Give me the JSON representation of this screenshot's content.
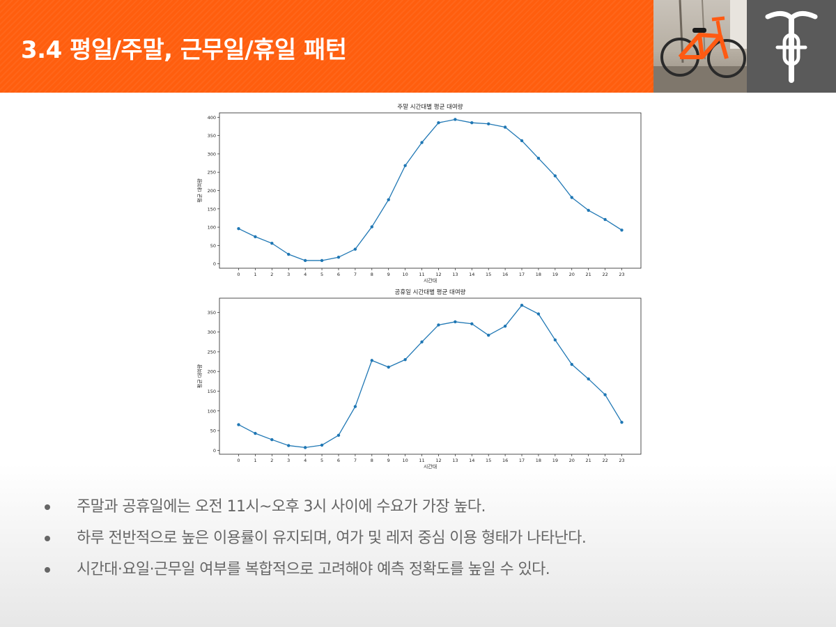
{
  "slide": {
    "title": "3.4 평일/주말, 근무일/휴일 패턴",
    "bullets": [
      "주말과 공휴일에는 오전 11시~오후 3시 사이에 수요가 가장 높다.",
      "하루 전반적으로 높은 이용률이 유지되며, 여가 및 레저 중심 이용 형태가 나타난다.",
      "시간대·요일·근무일 여부를 복합적으로 고려해야 예측 정확도를 높일 수 있다."
    ],
    "colors": {
      "header": "#ff5e0e",
      "line": "#1f77b4",
      "logo_bg": "#5a5a5a",
      "bullet_text": "#666666"
    },
    "icons": {
      "photo": "bicycle-photo",
      "logo": "bicycle-icon"
    }
  },
  "chart_data": [
    {
      "type": "line",
      "title": "주말 시간대별 평균 대여량",
      "xlabel": "시간대",
      "ylabel": "평균 대여량",
      "x": [
        0,
        1,
        2,
        3,
        4,
        5,
        6,
        7,
        8,
        9,
        10,
        11,
        12,
        13,
        14,
        15,
        16,
        17,
        18,
        19,
        20,
        21,
        22,
        23
      ],
      "y": [
        96,
        74,
        56,
        26,
        9,
        9,
        18,
        40,
        101,
        175,
        268,
        331,
        385,
        394,
        385,
        382,
        373,
        336,
        288,
        240,
        181,
        146,
        121,
        92
      ],
      "ylim": [
        -12,
        412
      ],
      "yticks": [
        0,
        50,
        100,
        150,
        200,
        250,
        300,
        350,
        400
      ],
      "grid": false,
      "markers": true
    },
    {
      "type": "line",
      "title": "공휴일 시간대별 평균 대여량",
      "xlabel": "시간대",
      "ylabel": "평균 대여량",
      "x": [
        0,
        1,
        2,
        3,
        4,
        5,
        6,
        7,
        8,
        9,
        10,
        11,
        12,
        13,
        14,
        15,
        16,
        17,
        18,
        19,
        20,
        21,
        22,
        23
      ],
      "y": [
        65,
        43,
        27,
        12,
        7,
        13,
        38,
        111,
        228,
        211,
        230,
        275,
        318,
        326,
        321,
        292,
        315,
        368,
        346,
        280,
        218,
        181,
        141,
        71
      ],
      "ylim": [
        -10,
        386
      ],
      "yticks": [
        0,
        50,
        100,
        150,
        200,
        250,
        300,
        350
      ],
      "grid": false,
      "markers": true
    }
  ]
}
